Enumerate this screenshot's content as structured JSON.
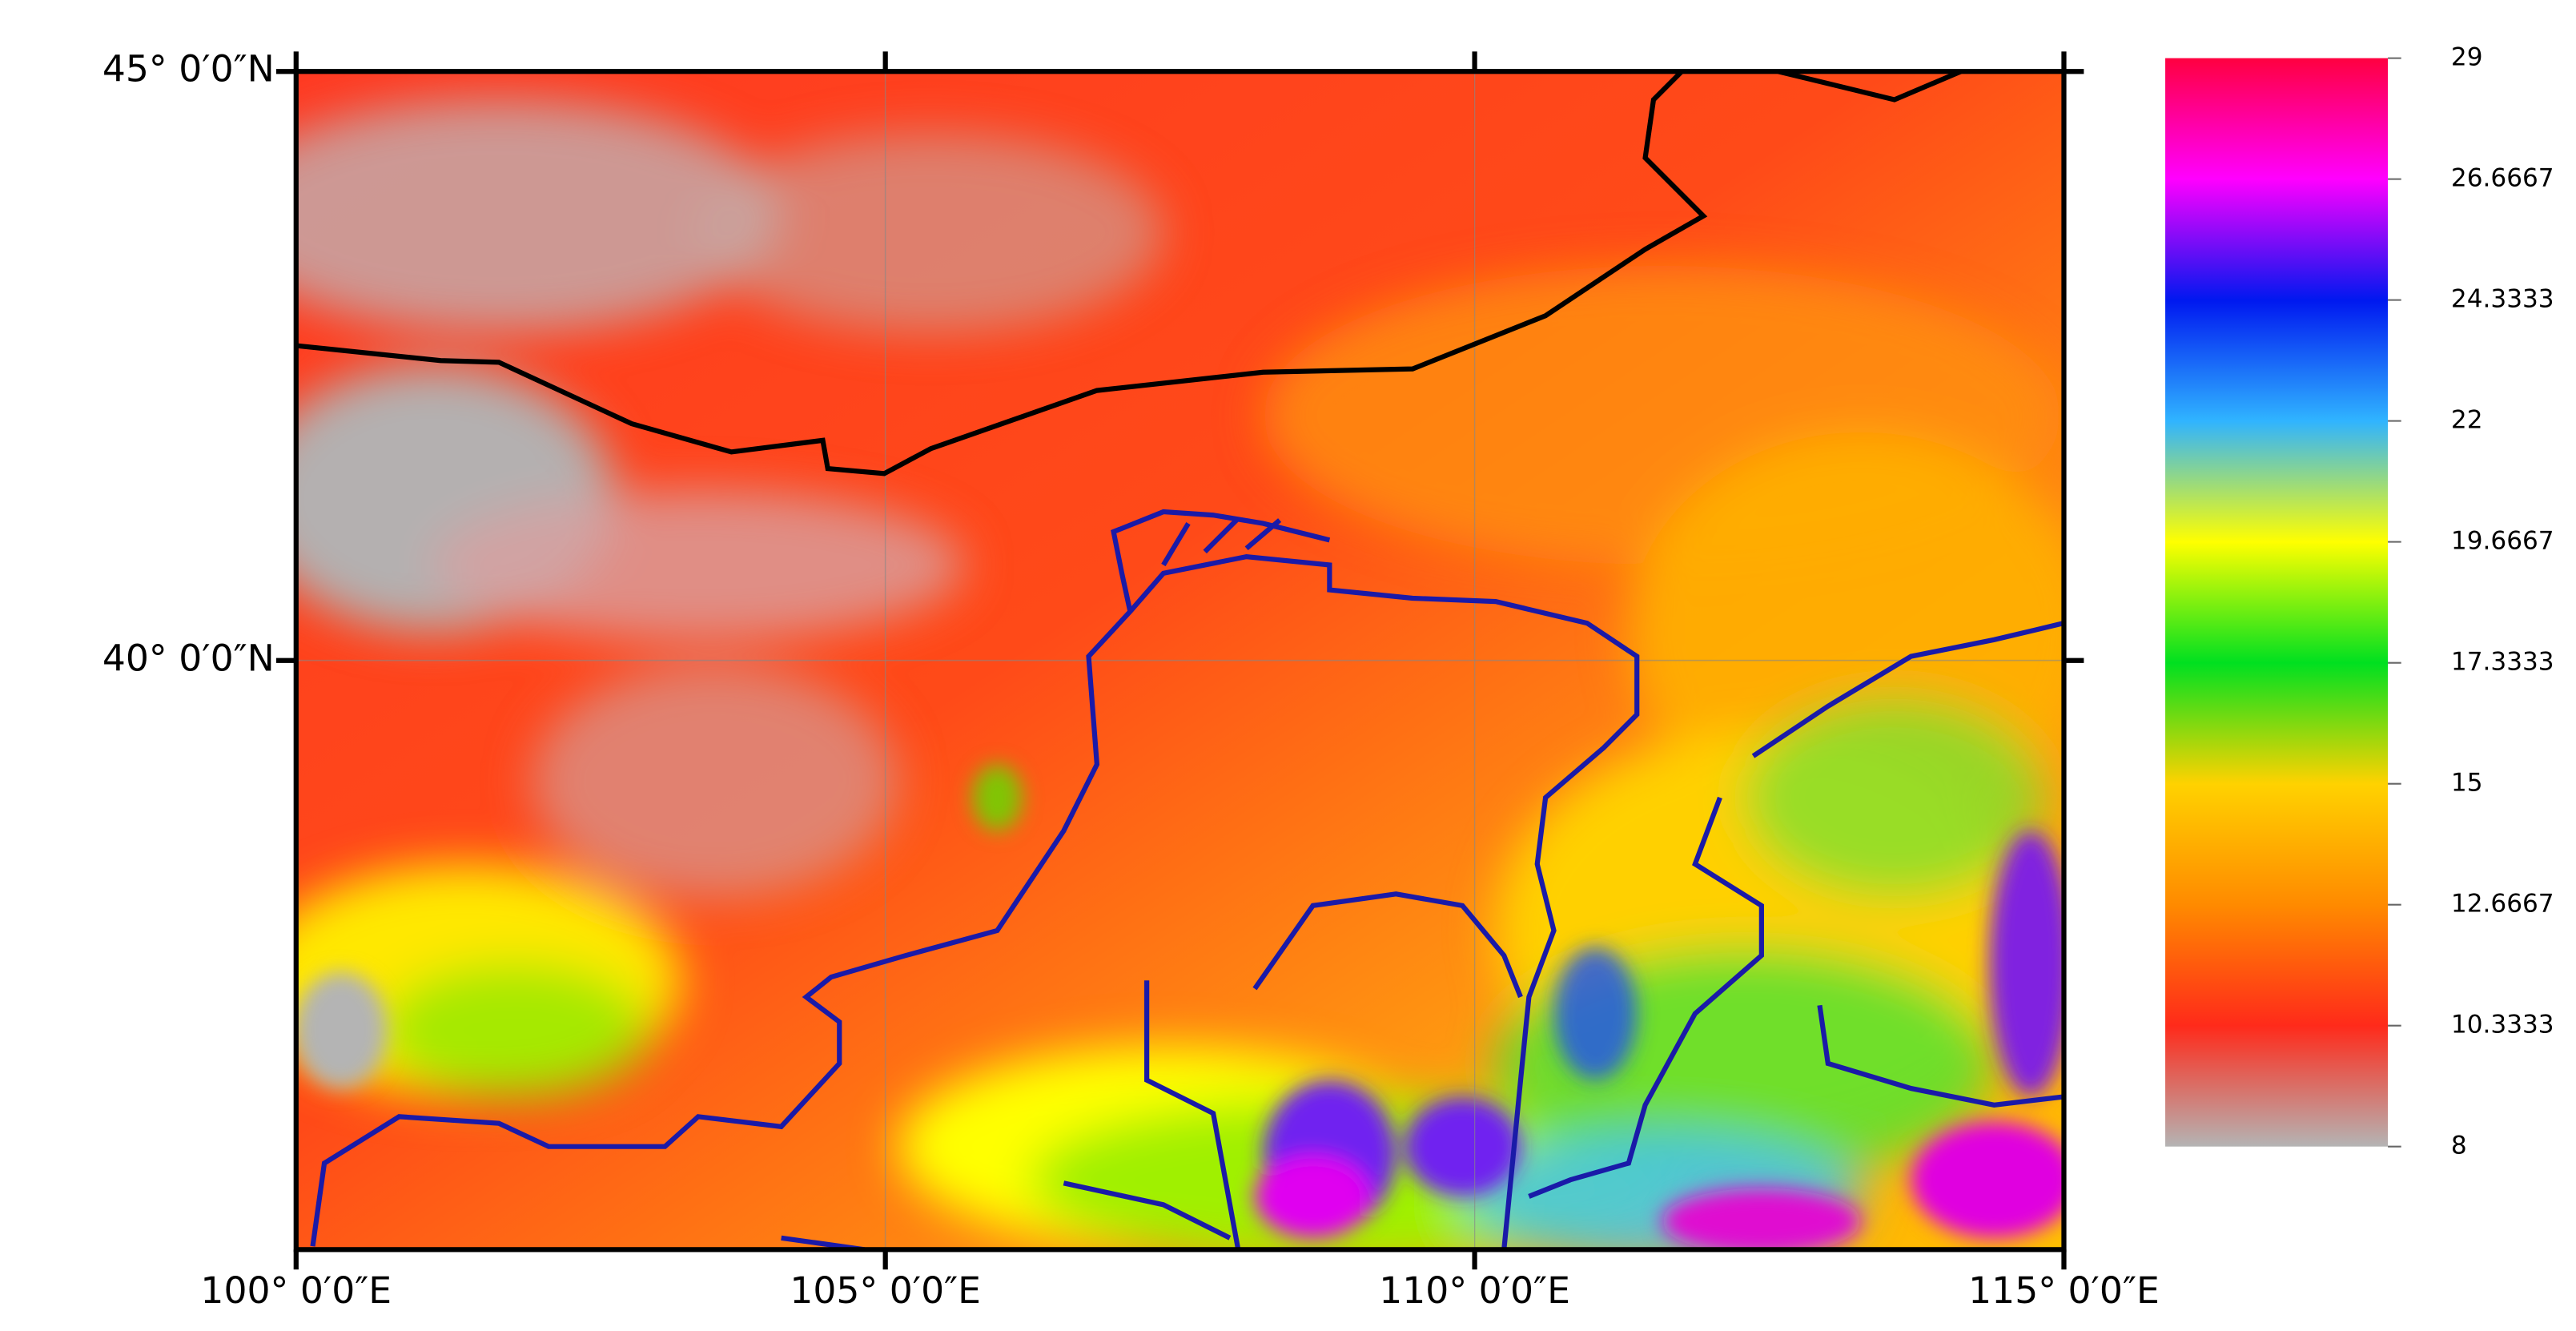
{
  "map": {
    "xlim": [
      100,
      115
    ],
    "ylim": [
      35,
      45
    ],
    "xticks": [
      {
        "value": 100,
        "label": "100°  0′0″E"
      },
      {
        "value": 105,
        "label": "105°  0′0″E"
      },
      {
        "value": 110,
        "label": "110°  0′0″E"
      },
      {
        "value": 115,
        "label": "115°  0′0″E"
      }
    ],
    "yticks": [
      {
        "value": 40,
        "label": "40°  0′0″N"
      },
      {
        "value": 45,
        "label": "45°  0′0″N"
      }
    ],
    "grid": true
  },
  "colorbar": {
    "lim": [
      8,
      29
    ],
    "ticks": [
      8,
      10.3333,
      12.6667,
      15,
      17.3333,
      19.6667,
      22,
      24.3333,
      26.6667,
      29
    ],
    "colors": [
      "#b4b4b4",
      "#ff2a1a",
      "#ff8a00",
      "#ffd200",
      "#00e020",
      "#ffff00",
      "#30b4ff",
      "#0018f0",
      "#ff00ff",
      "#ff0040"
    ]
  }
}
